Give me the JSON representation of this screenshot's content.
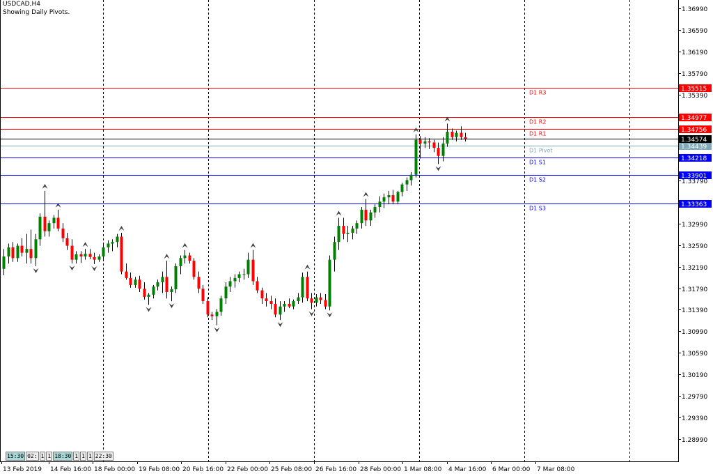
{
  "header": {
    "symbol": "USDCAD,H4",
    "note": "Showing Daily Pivots."
  },
  "timeframes": [
    {
      "label": "15:30",
      "active": true
    },
    {
      "label": "02:",
      "active": false
    },
    {
      "label": "1",
      "active": false
    },
    {
      "label": "1",
      "active": false
    },
    {
      "label": "18:30",
      "active": true
    },
    {
      "label": "1",
      "active": false
    },
    {
      "label": "1",
      "active": false
    },
    {
      "label": "1",
      "active": false
    },
    {
      "label": "22:30",
      "active": false
    }
  ],
  "colors": {
    "bull": "#008000",
    "bear": "#ff0000",
    "resistance": "#ff0000",
    "support": "#0000ff",
    "pivot": "#7fa8b8",
    "current_price": "#000000",
    "grid": "#000000",
    "axis_text": "#000000"
  },
  "chart_data": {
    "type": "candlestick",
    "price_axis": {
      "ticks": [
        "1.36990",
        "1.36590",
        "1.36190",
        "1.35790",
        "1.35390",
        "1.34990",
        "1.34590",
        "1.34190",
        "1.33790",
        "1.33390",
        "1.32990",
        "1.32590",
        "1.32190",
        "1.31790",
        "1.31390",
        "1.30990",
        "1.30590",
        "1.30190",
        "1.29790",
        "1.29390",
        "1.28990"
      ],
      "range": [
        1.2857,
        1.3715
      ]
    },
    "time_axis": {
      "ticks": [
        "13 Feb 2019",
        "14 Feb 16:00",
        "18 Feb 00:00",
        "19 Feb 08:00",
        "20 Feb 16:00",
        "22 Feb 00:00",
        "25 Feb 08:00",
        "26 Feb 16:00",
        "28 Feb 00:00",
        "1 Mar 08:00",
        "4 Mar 16:00",
        "6 Mar 00:00",
        "7 Mar 08:00"
      ]
    },
    "period_separators": 6,
    "pivot_levels": [
      {
        "name": "D1 R3",
        "value": 1.35515,
        "label": "1.35515",
        "kind": "resistance"
      },
      {
        "name": "D1 R2",
        "value": 1.34977,
        "label": "1.34977",
        "kind": "resistance"
      },
      {
        "name": "D1 R1",
        "value": 1.34756,
        "label": "1.34756",
        "kind": "resistance"
      },
      {
        "name": "D1 Pivot",
        "value": 1.34439,
        "label": "1.34439",
        "kind": "pivot"
      },
      {
        "name": "D1 S1",
        "value": 1.34218,
        "label": "1.34218",
        "kind": "support"
      },
      {
        "name": "D1 S2",
        "value": 1.33901,
        "label": "1.33901",
        "kind": "support"
      },
      {
        "name": "D1 S3",
        "value": 1.33363,
        "label": "1.33363",
        "kind": "support"
      }
    ],
    "current_price": {
      "value": 1.34574,
      "label": "1.34574"
    },
    "candles": [
      [
        1.3215,
        1.3252,
        1.3203,
        1.3238
      ],
      [
        1.3238,
        1.3262,
        1.3225,
        1.3255
      ],
      [
        1.3255,
        1.3265,
        1.3228,
        1.3235
      ],
      [
        1.3235,
        1.3262,
        1.3228,
        1.3258
      ],
      [
        1.3258,
        1.3272,
        1.3238,
        1.3245
      ],
      [
        1.3245,
        1.328,
        1.3225,
        1.3252
      ],
      [
        1.3252,
        1.3288,
        1.3225,
        1.3235
      ],
      [
        1.3235,
        1.328,
        1.322,
        1.327
      ],
      [
        1.327,
        1.3318,
        1.3258,
        1.3312
      ],
      [
        1.3312,
        1.336,
        1.3275,
        1.3285
      ],
      [
        1.3285,
        1.3305,
        1.3275,
        1.33
      ],
      [
        1.33,
        1.3315,
        1.329,
        1.331
      ],
      [
        1.331,
        1.3325,
        1.3285,
        1.329
      ],
      [
        1.329,
        1.33,
        1.3265,
        1.3272
      ],
      [
        1.3272,
        1.3282,
        1.325,
        1.3258
      ],
      [
        1.3258,
        1.327,
        1.3225,
        1.3232
      ],
      [
        1.3232,
        1.3248,
        1.3225,
        1.3242
      ],
      [
        1.3242,
        1.3248,
        1.3226,
        1.3238
      ],
      [
        1.3238,
        1.3252,
        1.3232,
        1.3243
      ],
      [
        1.3243,
        1.3252,
        1.3233,
        1.3237
      ],
      [
        1.3237,
        1.3245,
        1.3224,
        1.3232
      ],
      [
        1.3232,
        1.3242,
        1.3228,
        1.3238
      ],
      [
        1.3238,
        1.3262,
        1.3232,
        1.3255
      ],
      [
        1.3255,
        1.3268,
        1.3245,
        1.3262
      ],
      [
        1.3262,
        1.327,
        1.3248,
        1.3265
      ],
      [
        1.3265,
        1.328,
        1.3255,
        1.3275
      ],
      [
        1.3275,
        1.3282,
        1.3205,
        1.321
      ],
      [
        1.321,
        1.3225,
        1.3195,
        1.3198
      ],
      [
        1.3198,
        1.3208,
        1.318,
        1.3185
      ],
      [
        1.3185,
        1.32,
        1.318,
        1.3195
      ],
      [
        1.3195,
        1.3202,
        1.3172,
        1.3178
      ],
      [
        1.3178,
        1.319,
        1.3158,
        1.3163
      ],
      [
        1.3163,
        1.317,
        1.3148,
        1.3167
      ],
      [
        1.3167,
        1.3185,
        1.316,
        1.3182
      ],
      [
        1.3182,
        1.3195,
        1.3175,
        1.319
      ],
      [
        1.319,
        1.321,
        1.317,
        1.32
      ],
      [
        1.32,
        1.323,
        1.316,
        1.3172
      ],
      [
        1.3172,
        1.3182,
        1.3155,
        1.3177
      ],
      [
        1.3177,
        1.3225,
        1.317,
        1.322
      ],
      [
        1.322,
        1.324,
        1.3205,
        1.3235
      ],
      [
        1.3235,
        1.325,
        1.3225,
        1.324
      ],
      [
        1.324,
        1.3245,
        1.3225,
        1.323
      ],
      [
        1.323,
        1.3235,
        1.3195,
        1.32
      ],
      [
        1.32,
        1.321,
        1.317,
        1.3178
      ],
      [
        1.3178,
        1.3185,
        1.315,
        1.3155
      ],
      [
        1.3155,
        1.3162,
        1.3125,
        1.313
      ],
      [
        1.313,
        1.3135,
        1.312,
        1.3127
      ],
      [
        1.3127,
        1.314,
        1.311,
        1.3135
      ],
      [
        1.3135,
        1.3165,
        1.3128,
        1.316
      ],
      [
        1.316,
        1.319,
        1.315,
        1.3182
      ],
      [
        1.3182,
        1.32,
        1.3172,
        1.3192
      ],
      [
        1.3192,
        1.3205,
        1.318,
        1.3198
      ],
      [
        1.3198,
        1.321,
        1.319,
        1.3205
      ],
      [
        1.3205,
        1.3215,
        1.3195,
        1.3205
      ],
      [
        1.3205,
        1.3245,
        1.3198,
        1.3232
      ],
      [
        1.3232,
        1.325,
        1.3185,
        1.3192
      ],
      [
        1.3192,
        1.32,
        1.317,
        1.3175
      ],
      [
        1.3175,
        1.318,
        1.315,
        1.316
      ],
      [
        1.316,
        1.317,
        1.3145,
        1.3155
      ],
      [
        1.3155,
        1.3165,
        1.314,
        1.315
      ],
      [
        1.315,
        1.316,
        1.3125,
        1.313
      ],
      [
        1.313,
        1.3155,
        1.312,
        1.3145
      ],
      [
        1.3145,
        1.3155,
        1.3135,
        1.315
      ],
      [
        1.315,
        1.316,
        1.3142,
        1.3145
      ],
      [
        1.3145,
        1.3158,
        1.314,
        1.3155
      ],
      [
        1.3155,
        1.317,
        1.315,
        1.3162
      ],
      [
        1.3162,
        1.3208,
        1.3152,
        1.32
      ],
      [
        1.32,
        1.321,
        1.3155,
        1.316
      ],
      [
        1.316,
        1.317,
        1.314,
        1.3152
      ],
      [
        1.3152,
        1.3168,
        1.3145,
        1.3162
      ],
      [
        1.3162,
        1.317,
        1.315,
        1.3157
      ],
      [
        1.3157,
        1.3168,
        1.314,
        1.3145
      ],
      [
        1.3145,
        1.324,
        1.3138,
        1.3232
      ],
      [
        1.3232,
        1.3275,
        1.321,
        1.3265
      ],
      [
        1.3265,
        1.331,
        1.325,
        1.3295
      ],
      [
        1.3295,
        1.331,
        1.327,
        1.328
      ],
      [
        1.328,
        1.3295,
        1.3265,
        1.3282
      ],
      [
        1.3282,
        1.3295,
        1.327,
        1.329
      ],
      [
        1.329,
        1.3305,
        1.328,
        1.33
      ],
      [
        1.33,
        1.333,
        1.329,
        1.3325
      ],
      [
        1.3325,
        1.3345,
        1.3295,
        1.3305
      ],
      [
        1.3305,
        1.3325,
        1.3295,
        1.332
      ],
      [
        1.332,
        1.3335,
        1.331,
        1.333
      ],
      [
        1.333,
        1.335,
        1.332,
        1.334
      ],
      [
        1.334,
        1.3355,
        1.3328,
        1.3348
      ],
      [
        1.3348,
        1.336,
        1.3335,
        1.3352
      ],
      [
        1.3352,
        1.3362,
        1.3335,
        1.334
      ],
      [
        1.334,
        1.336,
        1.3335,
        1.3358
      ],
      [
        1.3358,
        1.3375,
        1.335,
        1.3372
      ],
      [
        1.3372,
        1.3385,
        1.336,
        1.338
      ],
      [
        1.338,
        1.3395,
        1.337,
        1.339
      ],
      [
        1.339,
        1.3465,
        1.3385,
        1.3455
      ],
      [
        1.3455,
        1.3462,
        1.342,
        1.3448
      ],
      [
        1.3448,
        1.346,
        1.344,
        1.3452
      ],
      [
        1.3452,
        1.3458,
        1.3438,
        1.345
      ],
      [
        1.345,
        1.3455,
        1.3432,
        1.344
      ],
      [
        1.344,
        1.345,
        1.341,
        1.3425
      ],
      [
        1.3425,
        1.346,
        1.3415,
        1.3448
      ],
      [
        1.3448,
        1.3485,
        1.3442,
        1.347
      ],
      [
        1.347,
        1.3476,
        1.3455,
        1.346
      ],
      [
        1.346,
        1.3472,
        1.3452,
        1.3468
      ],
      [
        1.3468,
        1.348,
        1.3455,
        1.346
      ],
      [
        1.346,
        1.3468,
        1.3452,
        1.3457
      ]
    ]
  }
}
